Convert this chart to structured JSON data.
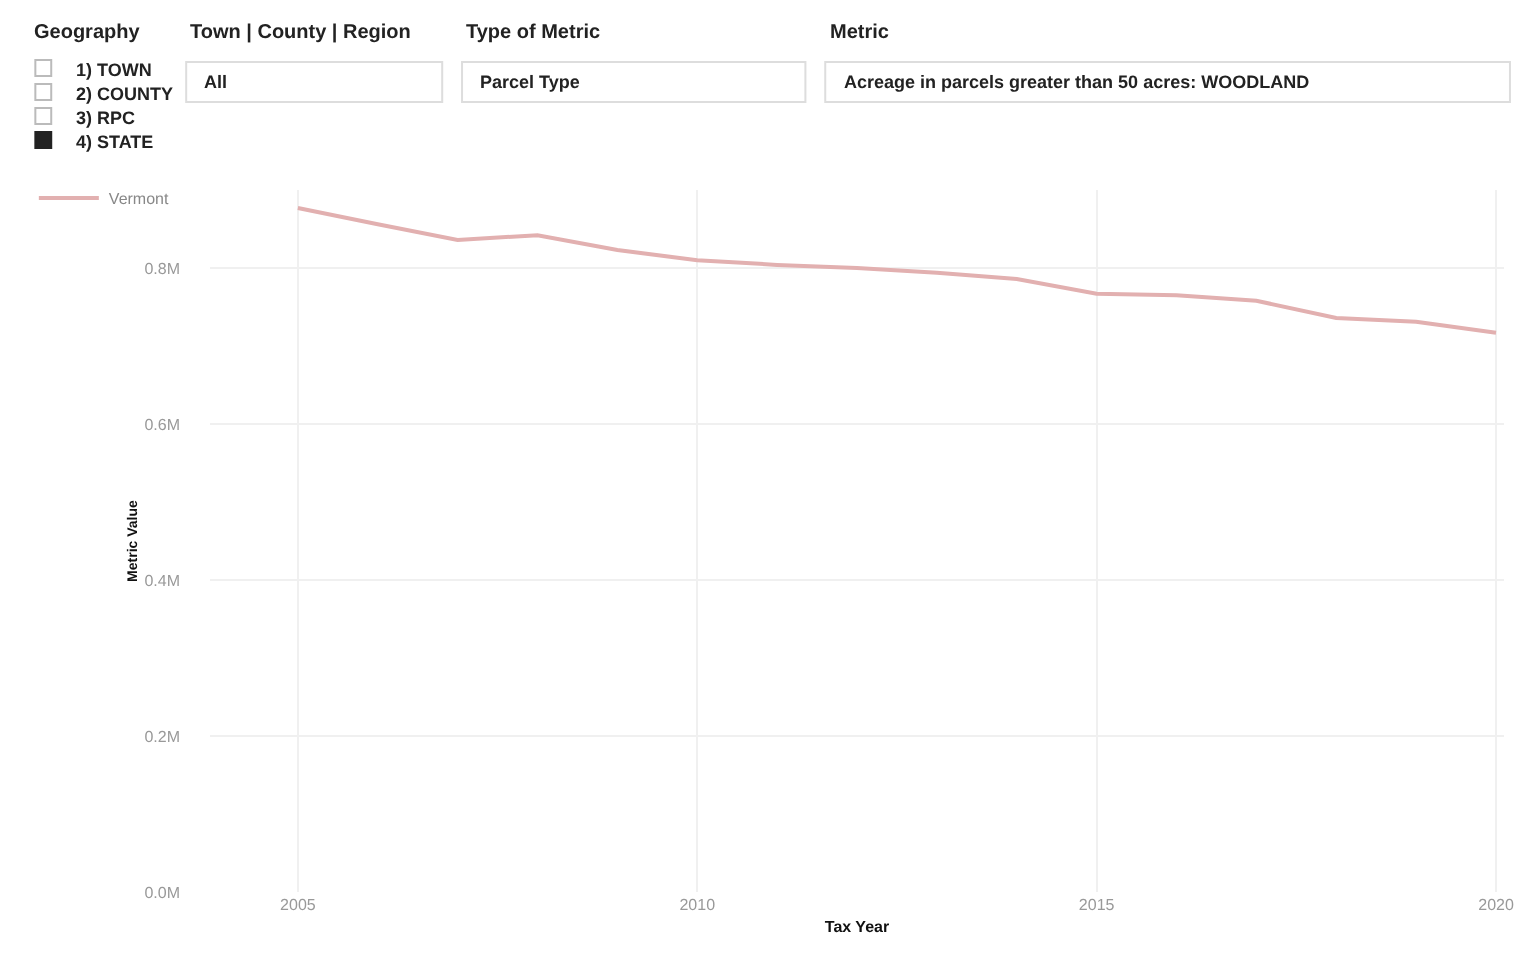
{
  "chart_data": {
    "type": "line",
    "xlabel": "Tax Year",
    "ylabel": "Metric Value",
    "x": [
      2005,
      2006,
      2007,
      2008,
      2009,
      2010,
      2011,
      2012,
      2013,
      2014,
      2015,
      2016,
      2017,
      2018,
      2019,
      2020
    ],
    "series": [
      {
        "name": "Vermont",
        "color": "#e2b0b0",
        "values": [
          0.877,
          0.856,
          0.836,
          0.842,
          0.823,
          0.81,
          0.804,
          0.8,
          0.794,
          0.786,
          0.767,
          0.765,
          0.758,
          0.736,
          0.731,
          0.717
        ]
      }
    ],
    "xlim": [
      2003.9,
      2020.1
    ],
    "xticks": [
      2005,
      2010,
      2015,
      2020
    ],
    "ylim": [
      0,
      0.9
    ],
    "yticks": [
      {
        "value": 0,
        "label": "0.0M"
      },
      {
        "value": 0.2,
        "label": "0.2M"
      },
      {
        "value": 0.4,
        "label": "0.4M"
      },
      {
        "value": 0.6,
        "label": "0.6M"
      },
      {
        "value": 0.8,
        "label": "0.8M"
      }
    ],
    "grid": true,
    "legend": "top left",
    "marker": "none",
    "line_style": "solid",
    "annotations": [
      "Geography",
      "1) TOWN",
      "2) COUNTY",
      "3) RPC",
      "4) STATE",
      "Town | County | Region",
      "All",
      "Type of Metric",
      "Parcel Type",
      "Metric",
      "Acreage in parcels greater than 50 acres: WOODLAND"
    ]
  }
}
